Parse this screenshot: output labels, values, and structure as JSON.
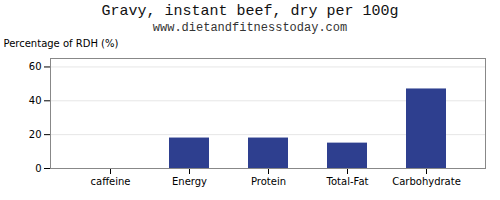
{
  "chart_data": {
    "type": "bar",
    "title": "Gravy, instant beef, dry per 100g",
    "subtitle": "www.dietandfitnesstoday.com",
    "ylabel": "Percentage of RDH (%)",
    "categories": [
      "caffeine",
      "Energy",
      "Protein",
      "Total-Fat",
      "Carbohydrate"
    ],
    "values": [
      0,
      18,
      18,
      15,
      47
    ],
    "color": "#2e3f8f",
    "ylim": [
      0,
      65
    ],
    "yticks": [
      0,
      20,
      40,
      60
    ],
    "grid": true
  }
}
